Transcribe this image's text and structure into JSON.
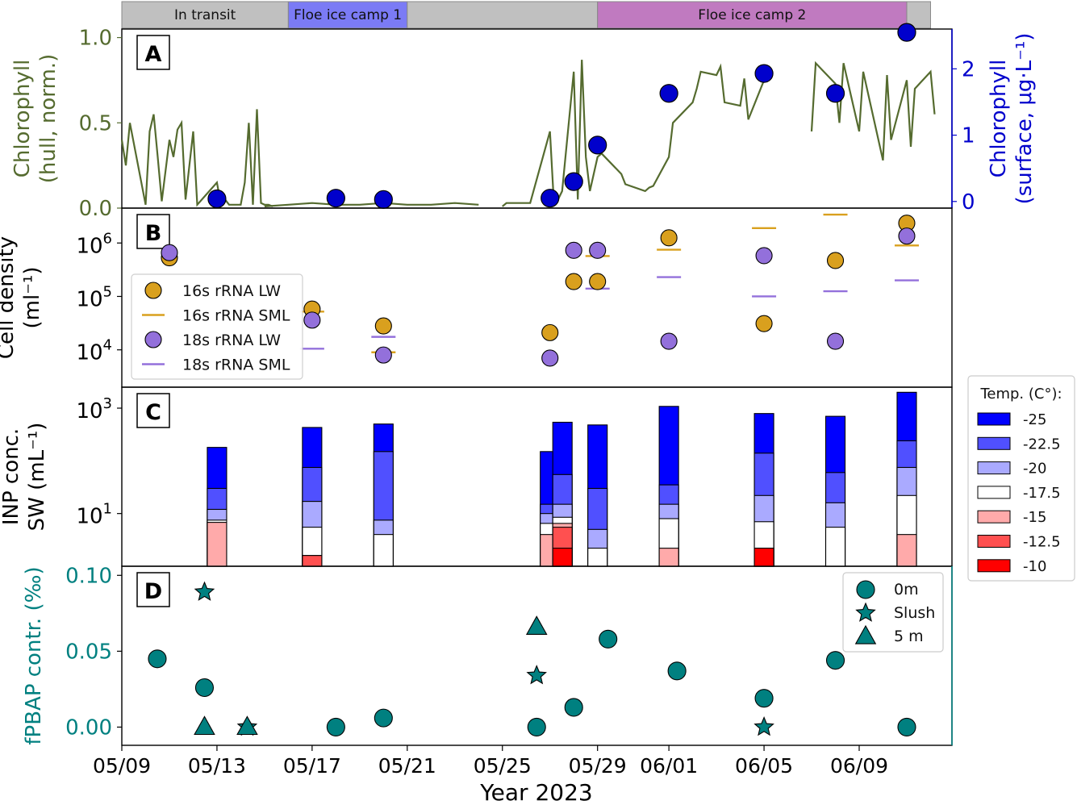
{
  "figure": {
    "xlabel": "Year 2023",
    "x_ticks": [
      "05/09",
      "05/13",
      "05/17",
      "05/21",
      "05/25",
      "05/29",
      "06/01",
      "06/05",
      "06/09"
    ],
    "phases": [
      {
        "label": "In transit",
        "start": "05/09",
        "end": "05/16",
        "color": "#c0c0c0"
      },
      {
        "label": "Floe ice camp 1",
        "start": "05/16",
        "end": "05/21",
        "color": "#7b7bf5"
      },
      {
        "label": "",
        "start": "05/21",
        "end": "05/29",
        "color": "#c0c0c0"
      },
      {
        "label": "Floe ice camp 2",
        "start": "05/29",
        "end": "06/11",
        "color": "#c07ac0"
      },
      {
        "label": "",
        "start": "06/11",
        "end": "06/12",
        "color": "#c0c0c0"
      }
    ],
    "panel_letters": [
      "A",
      "B",
      "C",
      "D"
    ]
  },
  "chart_data": [
    {
      "panel": "A",
      "type": "line",
      "ylabel": [
        "Chlorophyll",
        "(hull, norm.)"
      ],
      "ylabel_color": "#556b2f",
      "ylim": [
        0,
        1.05
      ],
      "y_ticks": [
        "0.0",
        "0.5",
        "1.0"
      ],
      "series": [
        {
          "color": "#556b2f",
          "segments": [
            [
              [
                "05/09",
                0.4
              ],
              [
                "05/09",
                0.25
              ],
              [
                "05/09",
                0.5
              ],
              [
                "05/10",
                0.02
              ],
              [
                "05/10",
                0.45
              ],
              [
                "05/10",
                0.55
              ],
              [
                "05/10",
                0.3
              ],
              [
                "05/10",
                0.04
              ],
              [
                "05/11",
                0.4
              ],
              [
                "05/11",
                0.3
              ],
              [
                "05/11",
                0.46
              ],
              [
                "05/11",
                0.5
              ],
              [
                "05/11",
                0.05
              ],
              [
                "05/12",
                0.45
              ],
              [
                "05/12",
                0.02
              ],
              [
                "05/13",
                0.15
              ],
              [
                "05/13",
                0.02
              ],
              [
                "05/13",
                0.05
              ],
              [
                "05/13",
                0.02
              ],
              [
                "05/14",
                0.02
              ],
              [
                "05/14",
                0.15
              ],
              [
                "05/14",
                0.5
              ],
              [
                "05/14",
                0.02
              ],
              [
                "05/14",
                0.58
              ],
              [
                "05/14",
                0.03
              ],
              [
                "05/15",
                0.02
              ],
              [
                "05/15",
                0.02
              ],
              [
                "05/15",
                0.01
              ]
            ],
            [
              [
                "05/15",
                0.01
              ],
              [
                "05/16",
                0.02
              ],
              [
                "05/17",
                0.03
              ],
              [
                "05/18",
                0.02
              ],
              [
                "05/19",
                0.02
              ],
              [
                "05/20",
                0.03
              ],
              [
                "05/21",
                0.02
              ],
              [
                "05/22",
                0.02
              ],
              [
                "05/23",
                0.03
              ],
              [
                "05/24",
                0.02
              ]
            ],
            [
              [
                "05/25",
                0.01
              ],
              [
                "05/25",
                0.03
              ],
              [
                "05/26",
                0.03
              ],
              [
                "05/26",
                0.03
              ],
              [
                "05/27",
                0.45
              ],
              [
                "05/27",
                0.02
              ],
              [
                "05/27",
                0.05
              ],
              [
                "05/27",
                0.1
              ],
              [
                "05/28",
                0.8
              ],
              [
                "05/28",
                0.05
              ],
              [
                "05/28",
                0.87
              ],
              [
                "05/28",
                0.3
              ],
              [
                "05/28",
                0.1
              ],
              [
                "05/29",
                0.3
              ],
              [
                "05/29",
                0.32
              ],
              [
                "05/30",
                0.2
              ],
              [
                "05/30",
                0.14
              ],
              [
                "05/31",
                0.1
              ],
              [
                "05/31",
                0.12
              ],
              [
                "05/31",
                0.13
              ],
              [
                "06/01",
                0.3
              ],
              [
                "06/01",
                0.5
              ],
              [
                "06/02",
                0.62
              ],
              [
                "06/02",
                0.7
              ],
              [
                "06/02",
                0.8
              ],
              [
                "06/03",
                0.78
              ],
              [
                "06/03",
                0.83
              ],
              [
                "06/03",
                0.62
              ],
              [
                "06/04",
                0.6
              ],
              [
                "06/04",
                0.76
              ],
              [
                "06/04",
                0.52
              ],
              [
                "06/05",
                0.75
              ]
            ],
            [
              [
                "06/07",
                0.45
              ],
              [
                "06/07",
                0.85
              ],
              [
                "06/08",
                0.73
              ],
              [
                "06/08",
                0.5
              ],
              [
                "06/08",
                0.85
              ],
              [
                "06/09",
                0.45
              ],
              [
                "06/09",
                0.8
              ],
              [
                "06/10",
                0.28
              ],
              [
                "06/10",
                0.78
              ],
              [
                "06/10",
                0.4
              ],
              [
                "06/11",
                0.75
              ],
              [
                "06/11",
                0.36
              ],
              [
                "06/11",
                0.7
              ],
              [
                "06/12",
                0.8
              ],
              [
                "06/12",
                0.55
              ]
            ]
          ]
        }
      ],
      "right_axis": {
        "ylabel": [
          "Chlorophyll",
          "(surface, μg·L⁻¹)"
        ],
        "color": "#0000cc",
        "ylim": [
          -0.1,
          2.6
        ],
        "y_ticks": [
          "0",
          "1",
          "2"
        ],
        "points": [
          {
            "x": "05/13",
            "y": 0.04
          },
          {
            "x": "05/18",
            "y": 0.05
          },
          {
            "x": "05/20",
            "y": 0.03
          },
          {
            "x": "05/27",
            "y": 0.05
          },
          {
            "x": "05/28",
            "y": 0.3
          },
          {
            "x": "05/29",
            "y": 0.85
          },
          {
            "x": "06/01",
            "y": 1.63
          },
          {
            "x": "06/05",
            "y": 1.93
          },
          {
            "x": "06/08",
            "y": 1.63
          },
          {
            "x": "06/11",
            "y": 2.55
          }
        ]
      }
    },
    {
      "panel": "B",
      "type": "scatter",
      "ylabel": [
        "Cell density",
        "(ml⁻¹)"
      ],
      "log_scale": true,
      "ylim": [
        2000,
        4500000
      ],
      "y_ticks": [
        {
          "base": "10",
          "exp": "6"
        },
        {
          "base": "10",
          "exp": "5"
        },
        {
          "base": "10",
          "exp": "4"
        }
      ],
      "legend": {
        "placement": "center-left",
        "entries": [
          "16s rRNA LW",
          "16s rRNA SML",
          "18s rRNA LW",
          "18s rRNA SML"
        ]
      },
      "series": [
        {
          "name": "16s rRNA LW",
          "marker": "circle",
          "color": "#d9a01e",
          "points": [
            [
              "05/11",
              530000
            ],
            [
              "05/17",
              58000
            ],
            [
              "05/20",
              28000
            ],
            [
              "05/27",
              21000
            ],
            [
              "05/28",
              190000
            ],
            [
              "05/29",
              190000
            ],
            [
              "06/01",
              1250000
            ],
            [
              "06/05",
              31000
            ],
            [
              "06/08",
              470000
            ],
            [
              "06/11",
              2350000
            ]
          ]
        },
        {
          "name": "16s rRNA SML",
          "marker": "hline",
          "color": "#d9a01e",
          "points": [
            [
              "05/17",
              52000
            ],
            [
              "05/20",
              9000
            ],
            [
              "05/29",
              570000
            ],
            [
              "06/01",
              750000
            ],
            [
              "06/05",
              1900000
            ],
            [
              "06/08",
              3400000
            ],
            [
              "06/11",
              900000
            ]
          ]
        },
        {
          "name": "18s rRNA LW",
          "marker": "circle",
          "color": "#9370db",
          "points": [
            [
              "05/11",
              660000
            ],
            [
              "05/17",
              36000
            ],
            [
              "05/20",
              8000
            ],
            [
              "05/27",
              7000
            ],
            [
              "05/28",
              730000
            ],
            [
              "05/29",
              730000
            ],
            [
              "06/01",
              14500
            ],
            [
              "06/05",
              580000
            ],
            [
              "06/08",
              14500
            ],
            [
              "06/11",
              1350000
            ]
          ]
        },
        {
          "name": "18s rRNA SML",
          "marker": "hline",
          "color": "#9370db",
          "points": [
            [
              "05/17",
              10500
            ],
            [
              "05/20",
              17500
            ],
            [
              "05/29",
              140000
            ],
            [
              "06/01",
              230000
            ],
            [
              "06/05",
              100000
            ],
            [
              "06/08",
              125000
            ],
            [
              "06/11",
              200000
            ]
          ]
        }
      ]
    },
    {
      "panel": "C",
      "type": "bar",
      "ylabel": [
        "INP conc.",
        "SW (mL⁻¹)"
      ],
      "log_scale": true,
      "ylim": [
        1,
        2500
      ],
      "y_ticks": [
        {
          "base": "10",
          "exp": "3"
        },
        {
          "base": "10",
          "exp": "1"
        }
      ],
      "legend": {
        "title": "Temp. (C°):",
        "placement": "outside-right",
        "entries": [
          {
            "label": "-25",
            "color": "#0000ff"
          },
          {
            "label": "-22.5",
            "color": "#5050ff"
          },
          {
            "label": "-20",
            "color": "#aaaaff"
          },
          {
            "label": "-17.5",
            "color": "#ffffff"
          },
          {
            "label": "-15",
            "color": "#ffaaaa"
          },
          {
            "label": "-12.5",
            "color": "#ff5050"
          },
          {
            "label": "-10",
            "color": "#ff0000"
          }
        ]
      },
      "categories": [
        "05/13",
        "05/17",
        "05/20",
        "05/27",
        "05/28",
        "05/29",
        "06/01",
        "06/05",
        "06/08",
        "06/11"
      ],
      "stacks": [
        {
          "x": "05/13",
          "values": {
            "-25": 180,
            "-22.5": 30,
            "-20": 12,
            "-17.5": 7.5,
            "-15": 6.8
          }
        },
        {
          "x": "05/17",
          "values": {
            "-25": 430,
            "-22.5": 75,
            "-20": 17,
            "-17.5": 5.5,
            "-15": 1.6,
            "-12.5": 1.6
          }
        },
        {
          "x": "05/20",
          "values": {
            "-25": 500,
            "-22.5": 150,
            "-20": 7.5,
            "-17.5": 4
          }
        },
        {
          "x": "05/27",
          "values": {
            "-25": 150,
            "-22.5": 15,
            "-20": 10,
            "-17.5": 6.5,
            "-15": 4
          }
        },
        {
          "x": "05/28",
          "values": {
            "-25": 540,
            "-22.5": 55,
            "-20": 15,
            "-17.5": 8.5,
            "-15": 6.5,
            "-12.5": 5.5,
            "-10": 2.2
          }
        },
        {
          "x": "05/29",
          "values": {
            "-25": 480,
            "-22.5": 30,
            "-20": 5,
            "-17.5": 2.2
          }
        },
        {
          "x": "06/01",
          "values": {
            "-25": 1080,
            "-22.5": 35,
            "-20": 15,
            "-17.5": 8,
            "-15": 2.2
          }
        },
        {
          "x": "06/05",
          "values": {
            "-25": 790,
            "-22.5": 140,
            "-20": 22,
            "-17.5": 7,
            "-15": 2.2,
            "-12.5": 2.2,
            "-10": 2.2
          }
        },
        {
          "x": "06/08",
          "values": {
            "-25": 700,
            "-22.5": 60,
            "-20": 16,
            "-17.5": 5.5
          }
        },
        {
          "x": "06/11",
          "values": {
            "-25": 2000,
            "-22.5": 240,
            "-20": 75,
            "-17.5": 22,
            "-15": 4
          }
        }
      ]
    },
    {
      "panel": "D",
      "type": "scatter",
      "ylabel": [
        "fPBAP contr. (‰)"
      ],
      "ylabel_color": "#008080",
      "ylim": [
        -0.012,
        0.106
      ],
      "y_ticks": [
        "0.00",
        "0.05",
        "0.10"
      ],
      "legend": {
        "placement": "top-right",
        "entries": [
          "0m",
          "Slush",
          "5 m"
        ]
      },
      "series": [
        {
          "name": "0m",
          "marker": "circle",
          "color": "#008080",
          "points": [
            [
              "05/11",
              0.045
            ],
            [
              "05/12",
              0.026
            ],
            [
              "05/18",
              0.0
            ],
            [
              "05/20",
              0.006
            ],
            [
              "05/26",
              0.0
            ],
            [
              "05/28",
              0.013
            ],
            [
              "05/29",
              0.058
            ],
            [
              "06/01",
              0.037
            ],
            [
              "06/05",
              0.019
            ],
            [
              "06/08",
              0.044
            ],
            [
              "06/11",
              0.0
            ]
          ]
        },
        {
          "name": "Slush",
          "marker": "star",
          "color": "#008080",
          "points": [
            [
              "05/12",
              0.089
            ],
            [
              "05/14",
              0.0
            ],
            [
              "05/26",
              0.034
            ],
            [
              "06/05",
              0.0
            ]
          ]
        },
        {
          "name": "5 m",
          "marker": "triangle",
          "color": "#008080",
          "points": [
            [
              "05/12",
              0.0
            ],
            [
              "05/14",
              0.0
            ],
            [
              "05/26",
              0.066
            ]
          ]
        }
      ]
    }
  ]
}
